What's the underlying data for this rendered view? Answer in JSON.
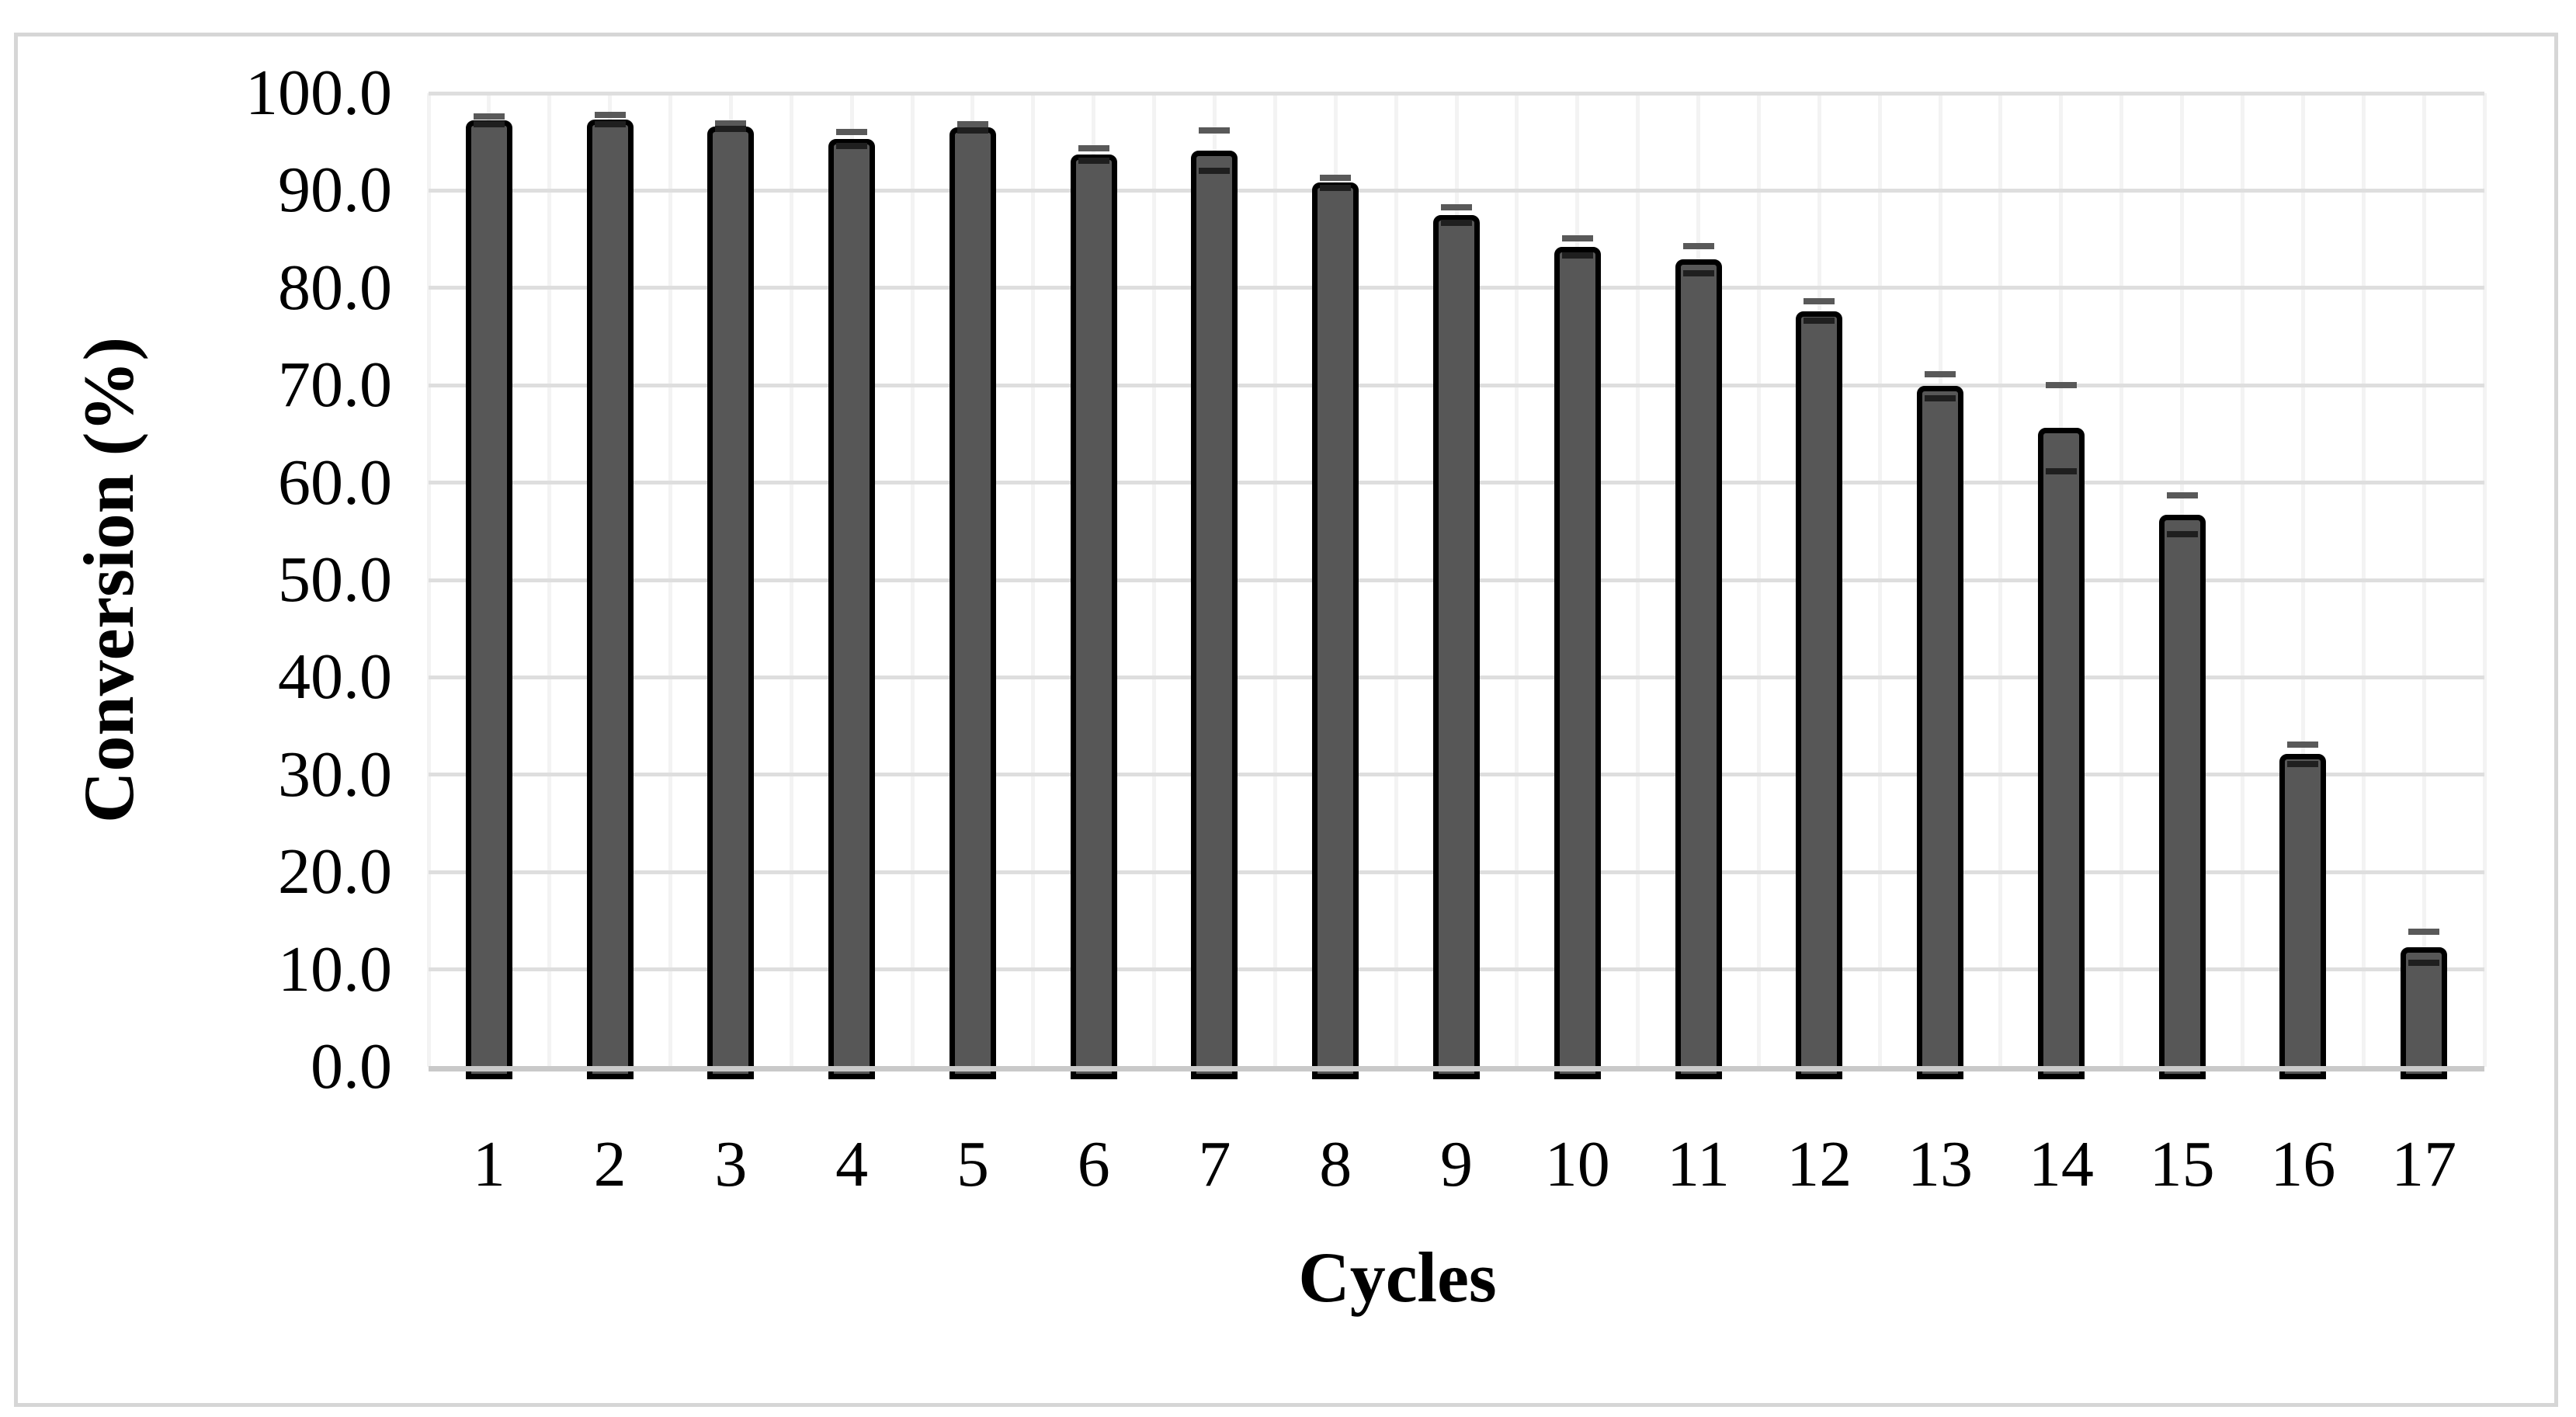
{
  "figure": {
    "background": "#ffffff",
    "frame_color": "#d6d6d6"
  },
  "chart_data": {
    "type": "bar",
    "title": "",
    "xlabel": "Cycles",
    "ylabel": "Conversion (%)",
    "categories": [
      "1",
      "2",
      "3",
      "4",
      "5",
      "6",
      "7",
      "8",
      "9",
      "10",
      "11",
      "12",
      "13",
      "14",
      "15",
      "16",
      "17"
    ],
    "series": [
      {
        "name": "Conversion",
        "values": [
          97.2,
          97.3,
          96.6,
          95.3,
          96.5,
          93.7,
          94.1,
          90.8,
          87.5,
          84.2,
          82.9,
          77.6,
          69.9,
          65.6,
          56.7,
          32.1,
          12.3
        ],
        "errors": [
          0.4,
          0.5,
          0.3,
          0.7,
          0.3,
          0.6,
          2.1,
          0.5,
          0.8,
          0.9,
          1.4,
          1.0,
          1.2,
          4.4,
          2.0,
          1.0,
          1.6
        ]
      }
    ],
    "ylim": [
      0,
      100
    ],
    "ytick_step": 10,
    "ytick_labels": [
      "0.0",
      "10.0",
      "20.0",
      "30.0",
      "40.0",
      "50.0",
      "60.0",
      "70.0",
      "80.0",
      "90.0",
      "100.0"
    ],
    "grid": "horizontal-major and faint vertical half-category gridlines",
    "legend_position": "none",
    "bar_fill": "#575757",
    "bar_outline": "#000000",
    "error_color": "#595959",
    "gridline_color": "#dedede",
    "axisline_color": "#c9c9c9"
  }
}
